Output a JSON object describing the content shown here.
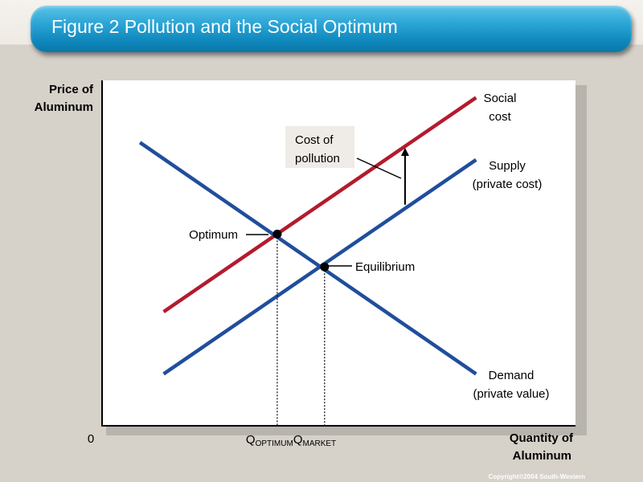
{
  "header": {
    "title": "Figure 2 Pollution and the Social Optimum"
  },
  "footer": {
    "copyright": "Copyright©2004 South-Western"
  },
  "chart_data": {
    "type": "line",
    "title": "Figure 2 Pollution and the Social Optimum",
    "ylabel": [
      "Price of",
      "Aluminum"
    ],
    "xlabel": [
      "Quantity of",
      "Aluminum"
    ],
    "origin_label": "0",
    "xlim": [
      0,
      100
    ],
    "ylim": [
      0,
      100
    ],
    "grid": false,
    "series": [
      {
        "name": "Social cost",
        "label_lines": [
          "Social",
          "cost"
        ],
        "color": "#b31b2e",
        "x": [
          13,
          79
        ],
        "y": [
          33,
          95
        ]
      },
      {
        "name": "Supply (private cost)",
        "label_lines": [
          "Supply",
          "(private cost)"
        ],
        "color": "#1f4e9c",
        "x": [
          13,
          79
        ],
        "y": [
          15,
          77
        ]
      },
      {
        "name": "Demand (private value)",
        "label_lines": [
          "Demand",
          "(private value)"
        ],
        "color": "#1f4e9c",
        "x": [
          8,
          79
        ],
        "y": [
          82,
          15
        ]
      }
    ],
    "points": [
      {
        "name": "Optimum",
        "x": 37,
        "y": 55.5
      },
      {
        "name": "Equilibrium",
        "x": 47,
        "y": 46
      }
    ],
    "x_markers": [
      {
        "main": "Q",
        "sub": "OPTIMUM",
        "x": 37
      },
      {
        "main": "Q",
        "sub": "MARKET",
        "x": 47
      }
    ],
    "annotations": [
      {
        "text_lines": [
          "Cost of",
          "pollution"
        ],
        "arrow_x": 64,
        "arrow_y_from": 64,
        "arrow_y_to": 80
      }
    ],
    "label_colors": {
      "box": "#efebe6",
      "axis": "#000000"
    }
  }
}
